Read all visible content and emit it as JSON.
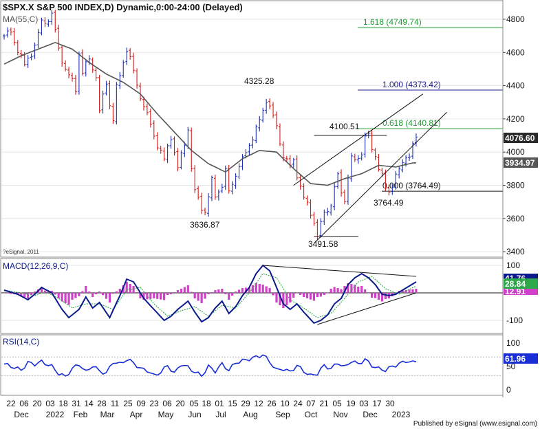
{
  "header": {
    "title": "$SPX.X S&P 500 INDEX,D) Dynamic,0:00-24:00 (Delayed)",
    "ma_label": "MA(55,C)",
    "copyright": "?eSignal, 2011",
    "footer": "Published by eSignal (www.esignal.com)"
  },
  "colors": {
    "bull": "#1f2fb4",
    "bear": "#d11a1a",
    "ma": "#555555",
    "fib_green": "#1e9a32",
    "fib_blue": "#1a1a8c",
    "macd": "#0a1a8c",
    "signal": "#2ea84a",
    "hist": "#d040c8",
    "rsi": "#1a2ed8",
    "price_tag": "#2a2a2a"
  },
  "chart_data": [
    {
      "name": "price",
      "type": "candlestick",
      "title": "$SPX.X S&P 500 INDEX,D) Dynamic,0:00-24:00 (Delayed)",
      "ylim": [
        3350,
        4900
      ],
      "yticks": [
        3400,
        3600,
        3800,
        4000,
        4200,
        4400,
        4600,
        4800
      ],
      "x_ticks": [
        "22",
        "06",
        "20",
        "03",
        "18",
        "31",
        "14",
        "28",
        "11",
        "25",
        "09",
        "23",
        "06",
        "20",
        "05",
        "18",
        "01",
        "15",
        "29",
        "12",
        "26",
        "10",
        "24",
        "07",
        "21",
        "05",
        "19",
        "03",
        "17",
        "30"
      ],
      "x_months": [
        "Dec",
        "2022",
        "Feb",
        "Mar",
        "Apr",
        "May",
        "Jun",
        "Jul",
        "Aug",
        "Sep",
        "Oct",
        "Nov",
        "Dec",
        "2023"
      ],
      "path": [
        [
          0,
          4700
        ],
        [
          2,
          4720
        ],
        [
          6,
          4520
        ],
        [
          9,
          4640
        ],
        [
          11,
          4780
        ],
        [
          13,
          4800
        ],
        [
          14,
          4830
        ],
        [
          16,
          4620
        ],
        [
          18,
          4500
        ],
        [
          21,
          4380
        ],
        [
          22,
          4600
        ],
        [
          23,
          4480
        ],
        [
          25,
          4560
        ],
        [
          27,
          4460
        ],
        [
          28,
          4240
        ],
        [
          30,
          4420
        ],
        [
          31,
          4290
        ],
        [
          32,
          4200
        ],
        [
          33,
          4380
        ],
        [
          34,
          4460
        ],
        [
          36,
          4630
        ],
        [
          37,
          4560
        ],
        [
          39,
          4400
        ],
        [
          41,
          4280
        ],
        [
          44,
          4100
        ],
        [
          47,
          3950
        ],
        [
          49,
          4100
        ],
        [
          51,
          3900
        ],
        [
          53,
          4050
        ],
        [
          54,
          4150
        ],
        [
          55,
          3900
        ],
        [
          56,
          3760
        ],
        [
          58,
          3670
        ],
        [
          59,
          3640
        ],
        [
          61,
          3820
        ],
        [
          62,
          3740
        ],
        [
          64,
          3800
        ],
        [
          65,
          3880
        ],
        [
          66,
          3760
        ],
        [
          68,
          3870
        ],
        [
          70,
          3950
        ],
        [
          72,
          4050
        ],
        [
          74,
          4130
        ],
        [
          76,
          4250
        ],
        [
          77,
          4325
        ],
        [
          78,
          4270
        ],
        [
          80,
          4150
        ],
        [
          82,
          3980
        ],
        [
          84,
          3910
        ],
        [
          85,
          3950
        ],
        [
          87,
          3790
        ],
        [
          88,
          3720
        ],
        [
          90,
          3640
        ],
        [
          91,
          3580
        ],
        [
          92,
          3492
        ],
        [
          93,
          3560
        ],
        [
          94,
          3640
        ],
        [
          96,
          3680
        ],
        [
          97,
          3780
        ],
        [
          98,
          3850
        ],
        [
          99,
          3770
        ],
        [
          100,
          3710
        ],
        [
          101,
          3850
        ],
        [
          102,
          3950
        ],
        [
          104,
          3970
        ],
        [
          105,
          4000
        ],
        [
          106,
          4080
        ],
        [
          107,
          4100
        ],
        [
          108,
          4020
        ],
        [
          109,
          3990
        ],
        [
          110,
          3900
        ],
        [
          111,
          3850
        ],
        [
          112,
          3780
        ],
        [
          113,
          3764
        ],
        [
          114,
          3810
        ],
        [
          115,
          3850
        ],
        [
          116,
          3890
        ],
        [
          117,
          3930
        ],
        [
          118,
          3990
        ],
        [
          119,
          3970
        ],
        [
          120,
          4040
        ],
        [
          121,
          4076
        ]
      ],
      "ma55": [
        [
          0,
          4530
        ],
        [
          5,
          4580
        ],
        [
          10,
          4620
        ],
        [
          15,
          4660
        ],
        [
          20,
          4620
        ],
        [
          25,
          4540
        ],
        [
          30,
          4470
        ],
        [
          35,
          4420
        ],
        [
          40,
          4350
        ],
        [
          45,
          4230
        ],
        [
          50,
          4120
        ],
        [
          55,
          4010
        ],
        [
          60,
          3930
        ],
        [
          65,
          3880
        ],
        [
          70,
          3960
        ],
        [
          75,
          4010
        ],
        [
          80,
          4000
        ],
        [
          85,
          3900
        ],
        [
          90,
          3810
        ],
        [
          95,
          3800
        ],
        [
          100,
          3840
        ],
        [
          105,
          3870
        ],
        [
          110,
          3920
        ],
        [
          115,
          3910
        ],
        [
          120,
          3935
        ]
      ],
      "annotations": [
        {
          "label": "4325.28",
          "x": 77,
          "y": 4325
        },
        {
          "label": "3636.87",
          "x": 59,
          "y": 3637
        },
        {
          "label": "4100.51",
          "x": 107,
          "y": 4100.51
        },
        {
          "label": "3764.49",
          "x": 113,
          "y": 3764.49
        },
        {
          "label": "3491.58",
          "x": 92,
          "y": 3491.58
        }
      ],
      "fib_levels": [
        {
          "label": "1.618 (4749.74)",
          "value": 4749.74,
          "color": "green"
        },
        {
          "label": "1.000 (4373.42)",
          "value": 4373.42,
          "color": "blue"
        },
        {
          "label": "0.618 (4140.81)",
          "value": 4140.81,
          "color": "green"
        },
        {
          "label": "0.000 (3764.49)",
          "value": 3764.49,
          "color": "black"
        }
      ],
      "trendlines": [
        {
          "from": [
            85,
            3800
          ],
          "to": [
            123,
            4350
          ]
        },
        {
          "from": [
            91,
            3450
          ],
          "to": [
            130,
            4240
          ]
        }
      ],
      "horizontal_segments": [
        {
          "value": 4100.51,
          "x_from": 91,
          "x_to": 112
        },
        {
          "value": 3491.58,
          "x_from": 91,
          "x_to": 104
        }
      ],
      "last_price": "4076.60",
      "last_ma": "3934.97"
    },
    {
      "name": "macd",
      "type": "line",
      "title": "MACD(12,26,9,C)",
      "ylim": [
        -135,
        125
      ],
      "yticks": [
        100,
        -100
      ],
      "zero_line": 0,
      "series_macd": [
        [
          0,
          10
        ],
        [
          4,
          -5
        ],
        [
          7,
          -25
        ],
        [
          9,
          -5
        ],
        [
          11,
          20
        ],
        [
          14,
          0
        ],
        [
          17,
          -60
        ],
        [
          19,
          -90
        ],
        [
          22,
          -60
        ],
        [
          24,
          -15
        ],
        [
          26,
          -55
        ],
        [
          28,
          -35
        ],
        [
          31,
          -90
        ],
        [
          34,
          -10
        ],
        [
          36,
          50
        ],
        [
          38,
          40
        ],
        [
          41,
          -20
        ],
        [
          44,
          -60
        ],
        [
          47,
          -100
        ],
        [
          49,
          -85
        ],
        [
          51,
          -60
        ],
        [
          54,
          -30
        ],
        [
          56,
          -70
        ],
        [
          58,
          -105
        ],
        [
          60,
          -90
        ],
        [
          62,
          -55
        ],
        [
          64,
          -30
        ],
        [
          66,
          -75
        ],
        [
          68,
          -50
        ],
        [
          70,
          -10
        ],
        [
          72,
          20
        ],
        [
          74,
          70
        ],
        [
          76,
          100
        ],
        [
          78,
          80
        ],
        [
          80,
          20
        ],
        [
          82,
          -40
        ],
        [
          84,
          -60
        ],
        [
          86,
          -40
        ],
        [
          88,
          -70
        ],
        [
          91,
          -110
        ],
        [
          93,
          -100
        ],
        [
          95,
          -80
        ],
        [
          97,
          -40
        ],
        [
          99,
          -20
        ],
        [
          101,
          30
        ],
        [
          103,
          55
        ],
        [
          105,
          70
        ],
        [
          107,
          55
        ],
        [
          109,
          30
        ],
        [
          111,
          -5
        ],
        [
          113,
          -10
        ],
        [
          115,
          -5
        ],
        [
          117,
          10
        ],
        [
          119,
          25
        ],
        [
          121,
          40
        ]
      ],
      "series_signal": [
        [
          0,
          10
        ],
        [
          5,
          0
        ],
        [
          9,
          -10
        ],
        [
          12,
          5
        ],
        [
          16,
          -20
        ],
        [
          20,
          -55
        ],
        [
          24,
          -40
        ],
        [
          28,
          -40
        ],
        [
          32,
          -60
        ],
        [
          36,
          10
        ],
        [
          40,
          20
        ],
        [
          44,
          -40
        ],
        [
          48,
          -85
        ],
        [
          52,
          -65
        ],
        [
          56,
          -50
        ],
        [
          60,
          -85
        ],
        [
          64,
          -45
        ],
        [
          68,
          -55
        ],
        [
          72,
          0
        ],
        [
          76,
          70
        ],
        [
          80,
          55
        ],
        [
          84,
          -25
        ],
        [
          88,
          -55
        ],
        [
          92,
          -90
        ],
        [
          96,
          -75
        ],
        [
          100,
          -20
        ],
        [
          104,
          40
        ],
        [
          108,
          60
        ],
        [
          112,
          15
        ],
        [
          116,
          -5
        ],
        [
          121,
          25
        ]
      ],
      "trendlines": [
        {
          "from": [
            76,
            100
          ],
          "to": [
            121,
            60
          ]
        },
        {
          "from": [
            92,
            -115
          ],
          "to": [
            121,
            0
          ]
        }
      ],
      "last_macd": "41.76",
      "last_signal": "28.84",
      "last_hist": "12.91"
    },
    {
      "name": "rsi",
      "type": "line",
      "title": "RSI(14,C)",
      "ylim": [
        -5,
        110
      ],
      "yticks": [
        100,
        50,
        0
      ],
      "guide_lines": [
        70,
        30
      ],
      "series_rsi": [
        [
          0,
          55
        ],
        [
          3,
          48
        ],
        [
          5,
          42
        ],
        [
          7,
          58
        ],
        [
          9,
          55
        ],
        [
          11,
          60
        ],
        [
          14,
          50
        ],
        [
          16,
          35
        ],
        [
          18,
          28
        ],
        [
          20,
          45
        ],
        [
          22,
          55
        ],
        [
          24,
          38
        ],
        [
          26,
          52
        ],
        [
          28,
          40
        ],
        [
          30,
          35
        ],
        [
          32,
          60
        ],
        [
          34,
          55
        ],
        [
          36,
          65
        ],
        [
          38,
          58
        ],
        [
          40,
          45
        ],
        [
          42,
          42
        ],
        [
          44,
          30
        ],
        [
          46,
          38
        ],
        [
          48,
          52
        ],
        [
          50,
          35
        ],
        [
          52,
          55
        ],
        [
          54,
          48
        ],
        [
          56,
          38
        ],
        [
          58,
          30
        ],
        [
          60,
          50
        ],
        [
          62,
          40
        ],
        [
          64,
          55
        ],
        [
          66,
          42
        ],
        [
          68,
          58
        ],
        [
          70,
          62
        ],
        [
          72,
          66
        ],
        [
          74,
          70
        ],
        [
          76,
          75
        ],
        [
          78,
          60
        ],
        [
          80,
          42
        ],
        [
          82,
          45
        ],
        [
          84,
          38
        ],
        [
          86,
          52
        ],
        [
          88,
          40
        ],
        [
          90,
          30
        ],
        [
          92,
          35
        ],
        [
          94,
          52
        ],
        [
          96,
          45
        ],
        [
          98,
          58
        ],
        [
          100,
          48
        ],
        [
          102,
          62
        ],
        [
          104,
          55
        ],
        [
          106,
          65
        ],
        [
          108,
          52
        ],
        [
          110,
          45
        ],
        [
          112,
          42
        ],
        [
          114,
          50
        ],
        [
          116,
          55
        ],
        [
          118,
          62
        ],
        [
          120,
          58
        ],
        [
          121,
          62
        ]
      ],
      "last_rsi": "61.96"
    }
  ]
}
